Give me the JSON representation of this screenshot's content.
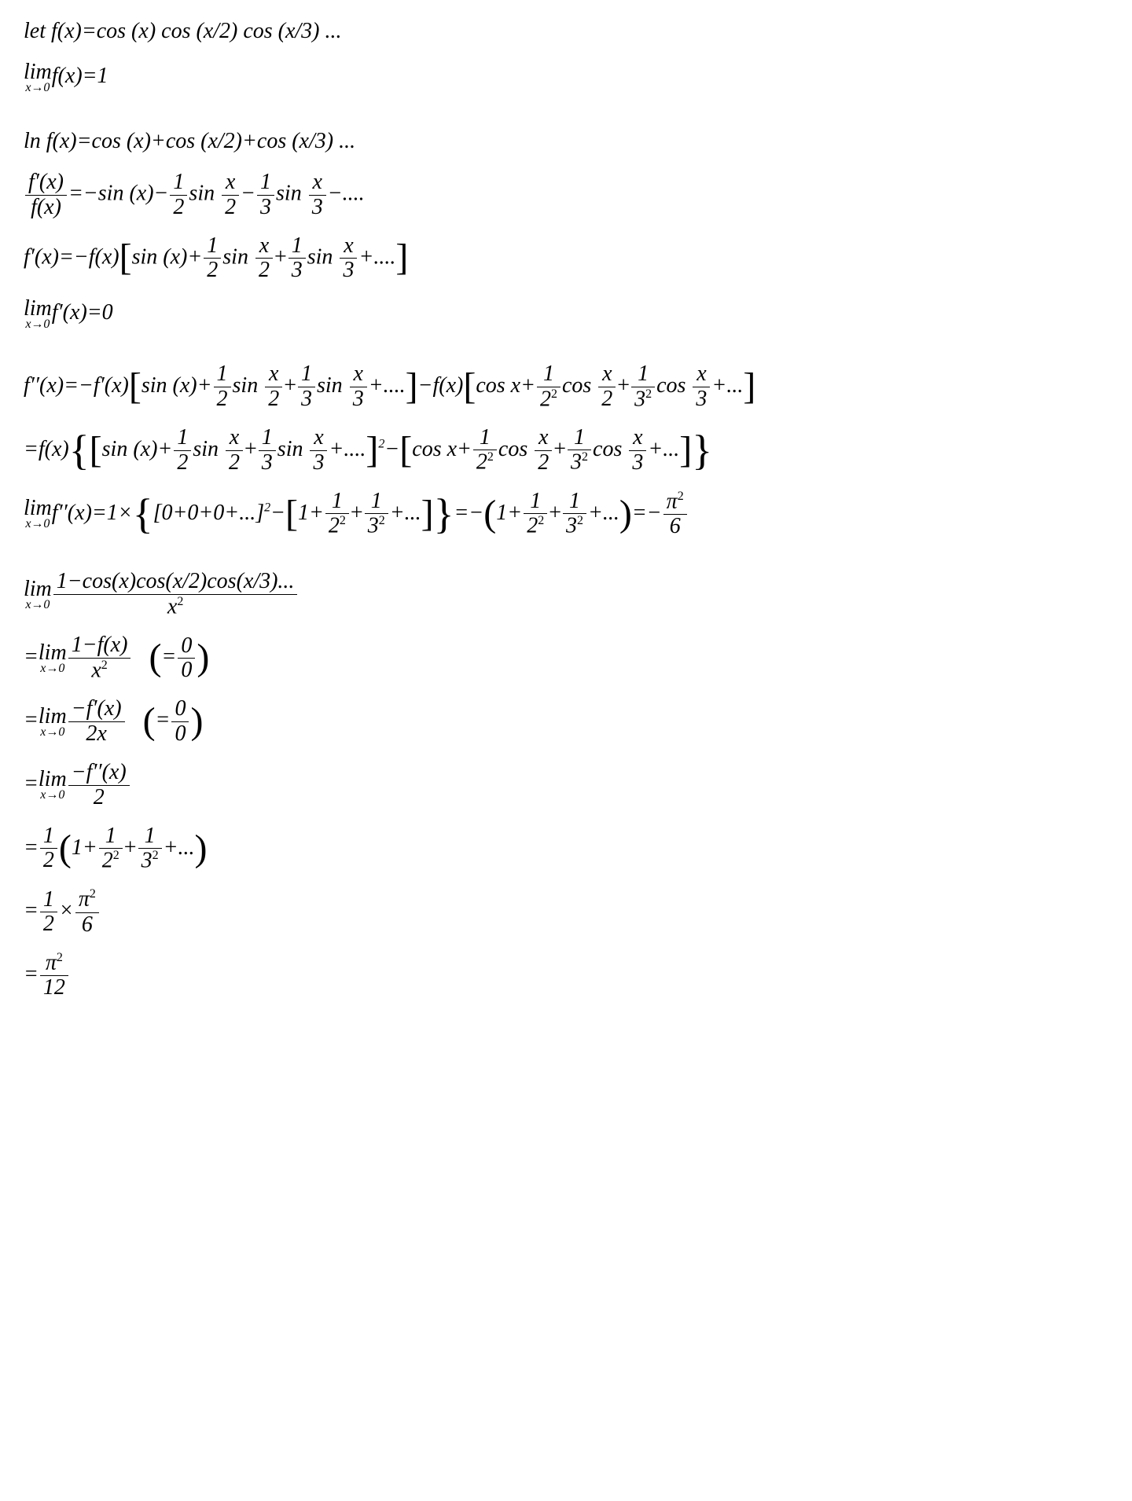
{
  "typography": {
    "font_family": "Times New Roman",
    "font_style": "italic",
    "font_size_pt": 28,
    "color": "#000000",
    "background_color": "#ffffff"
  },
  "lines": {
    "l1": "let f(x)=cos (x) cos (x/2) cos (x/3) ...",
    "l2_lim": "lim",
    "l2_sub": "x→0",
    "l2_rest": "f(x)=1",
    "l3": "ln f(x)=cos (x)+cos (x/2)+cos (x/3) ...",
    "l4_frac_num": "f′(x)",
    "l4_frac_den": "f(x)",
    "l4_mid1": "=−sin (x)−",
    "l4_half_num": "1",
    "l4_half_den": "2",
    "l4_sin": "sin ",
    "l4_x2_num": "x",
    "l4_x2_den": "2",
    "l4_minus": "−",
    "l4_third_num": "1",
    "l4_third_den": "3",
    "l4_x3_num": "x",
    "l4_x3_den": "3",
    "l4_end": "−....",
    "l5_start": "f′(x)=−f(x)",
    "l5_b1": "sin (x)+",
    "l5_end": "+....",
    "l6_lim": "lim",
    "l6_sub": "x→0",
    "l6_rest": "f′(x)=0",
    "l7_start": "f′′(x)=−f′(x)",
    "l7_mid": "−f(x)",
    "l7_cos": "cos x+",
    "l7_22_num": "1",
    "l7_22_den": "2",
    "l7_22_sup": "2",
    "l7_cosxb": "cos ",
    "l7_32_num": "1",
    "l7_32_den": "3",
    "l7_dots": "+...",
    "l8_start": "=f(x)",
    "l8_sq": "2",
    "l8_minus": "−",
    "l9_lim": "lim",
    "l9_sub": "x→0",
    "l9_start": "f′′(x)=1×",
    "l9_brack1": "[0+0+0+...]",
    "l9_sq": "2",
    "l9_minus": "−",
    "l9_one": "1+",
    "l9_eq": "=−",
    "l9_eq2": "=−",
    "l9_pi_num": "π",
    "l9_pi_sup": "2",
    "l9_pi_den": "6",
    "l10_lim": "lim",
    "l10_sub": "x→0",
    "l10_num": "1−cos(x)cos(x/2)cos(x/3)...",
    "l10_den": "x",
    "l10_sup": "2",
    "l11_eq": "=",
    "l11_lim": "lim",
    "l11_sub": "x→0",
    "l11_num": "1−f(x)",
    "l11_den": "x",
    "l11_paren_num": "0",
    "l11_paren_den": "0",
    "l11_paren_eq": "=",
    "l12_num": "−f′(x)",
    "l12_den": "2x",
    "l13_num": "−f′′(x)",
    "l13_den": "2",
    "l14_eq": "=",
    "l14_half_num": "1",
    "l14_half_den": "2",
    "l14_one": "1+",
    "l14_dots": "+...",
    "l15_eq": "=",
    "l15_half_num": "1",
    "l15_half_den": "2",
    "l15_times": "×",
    "l15_pi_num": "π",
    "l15_pi_sup": "2",
    "l15_pi_den": "6",
    "l16_eq": "=",
    "l16_pi_num": "π",
    "l16_pi_sup": "2",
    "l16_pi_den": "12"
  }
}
